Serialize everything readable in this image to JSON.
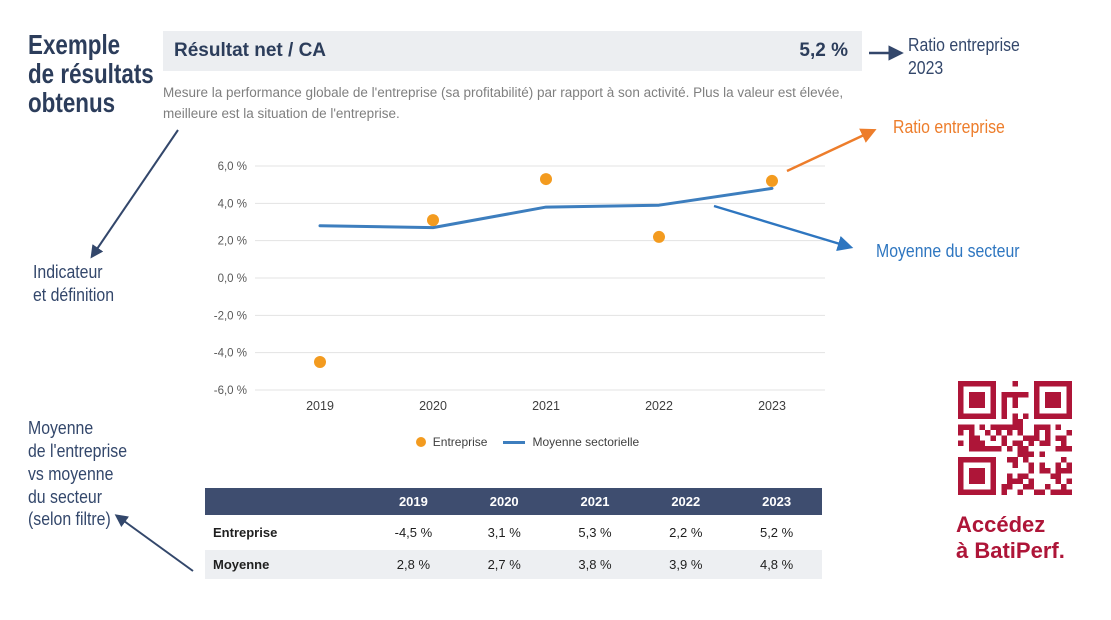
{
  "page": {
    "heading": "Exemple\nde résultats\nobtenus"
  },
  "header": {
    "title": "Résultat net / CA",
    "value": "5,2 %",
    "description": "Mesure la performance globale de l'entreprise (sa profitabilité) par rapport à son activité. Plus la valeur est élevée,\nmeilleure est la situation de l'entreprise."
  },
  "annotations": {
    "ratio_entreprise_2023": "Ratio entreprise\n2023",
    "indicateur_definition": "Indicateur\net définition",
    "ratio_entreprise": "Ratio entreprise",
    "moyenne_secteur": "Moyenne du secteur",
    "moyenne_vs_filtre": "Moyenne\nde l'entreprise\nvs moyenne\ndu secteur\n(selon filtre)"
  },
  "chart_data": {
    "type": "line",
    "categories": [
      "2019",
      "2020",
      "2021",
      "2022",
      "2023"
    ],
    "series": [
      {
        "name": "Entreprise",
        "style": "scatter",
        "color": "#F39B1F",
        "values": [
          -4.5,
          3.1,
          5.3,
          2.2,
          5.2
        ]
      },
      {
        "name": "Moyenne sectorielle",
        "style": "line",
        "color": "#3D7EBE",
        "values": [
          2.8,
          2.7,
          3.8,
          3.9,
          4.8
        ]
      }
    ],
    "ylim": [
      -6,
      6
    ],
    "ytick_step": 2,
    "ytick_labels": [
      "6,0 %",
      "4,0 %",
      "2,0 %",
      "0,0 %",
      "-2,0 %",
      "-4,0 %",
      "-6,0 %"
    ],
    "grid": true,
    "legend_position": "bottom"
  },
  "table": {
    "columns": [
      "",
      "2019",
      "2020",
      "2021",
      "2022",
      "2023"
    ],
    "rows": [
      {
        "label": "Entreprise",
        "values": [
          "-4,5 %",
          "3,1 %",
          "5,3 %",
          "2,2 %",
          "5,2 %"
        ]
      },
      {
        "label": "Moyenne",
        "values": [
          "2,8 %",
          "2,7 %",
          "3,8 %",
          "3,9 %",
          "4,8 %"
        ]
      }
    ]
  },
  "footer": {
    "qr_label": "Accédez\nà BatiPerf."
  },
  "colors": {
    "navy": "#2C3D5B",
    "annotation_navy": "#33476B",
    "orange": "#F39B1F",
    "orange_annotation": "#ED7D2B",
    "blue": "#3D7EBE",
    "blue_annotation": "#2E76C0",
    "header_bar_bg": "#ECEEF1",
    "table_header_bg": "#3E4D6F",
    "table_alt_row_bg": "#EDEFF2",
    "crimson": "#AE1538",
    "axis_label": "#595959",
    "gridline": "#E3E3E3"
  }
}
